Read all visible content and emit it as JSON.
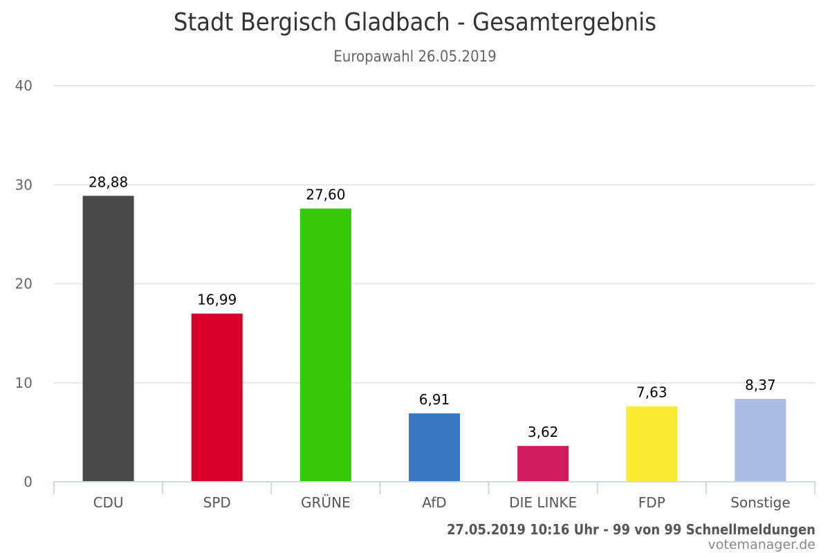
{
  "header": {
    "title": "Stadt Bergisch Gladbach - Gesamtergebnis",
    "subtitle": "Europawahl 26.05.2019"
  },
  "footer": {
    "status": "27.05.2019 10:16 Uhr - 99 von 99 Schnellmeldungen",
    "credit": "votemanager.de"
  },
  "chart_data": {
    "type": "bar",
    "title": "Stadt Bergisch Gladbach - Gesamtergebnis",
    "subtitle": "Europawahl 26.05.2019",
    "xlabel": "",
    "ylabel": "",
    "ylim": [
      0,
      40
    ],
    "yticks": [
      0,
      10,
      20,
      30,
      40
    ],
    "grid": true,
    "legend": "none",
    "categories": [
      "CDU",
      "SPD",
      "GRÜNE",
      "AfD",
      "DIE LINKE",
      "FDP",
      "Sonstige"
    ],
    "values": [
      28.88,
      16.99,
      27.6,
      6.91,
      3.62,
      7.63,
      8.37
    ],
    "value_labels": [
      "28,88",
      "16,99",
      "27,60",
      "6,91",
      "3,62",
      "7,63",
      "8,37"
    ],
    "colors": [
      "#4a4a4a",
      "#d8002b",
      "#36c905",
      "#3878c0",
      "#d01c5a",
      "#f9ea32",
      "#a9bde3"
    ]
  }
}
